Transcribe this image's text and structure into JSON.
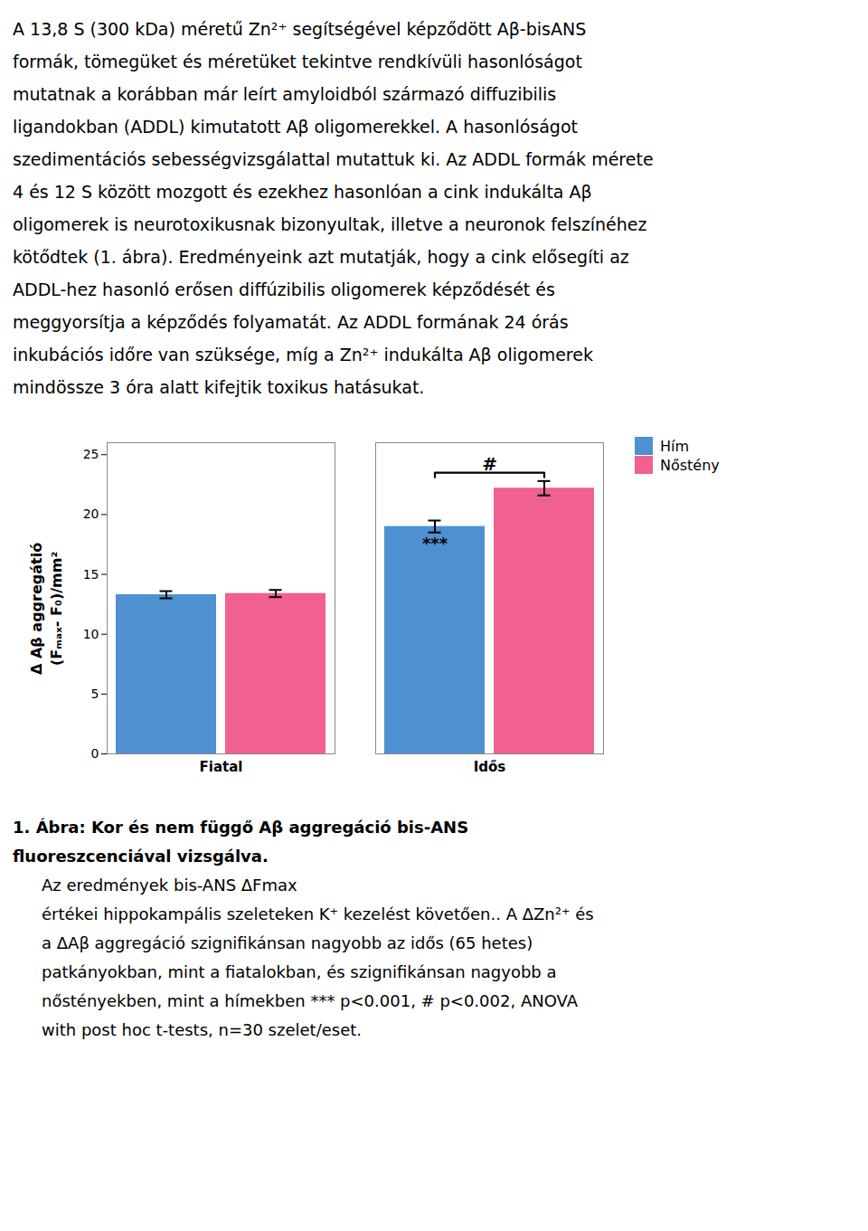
{
  "chart_data": {
    "type": "bar",
    "subtitle": [
      "A 13,8 S (300 kDa) méretű Zn²⁺ segítségével képződött Aβ-bisANS",
      "formák, tömegüket és méretüket tekintve rendkívüli hasonlóságot",
      "mutatnak a korábban már leírt amyloidból származó diffuzibilis",
      "ligandokban (ADDL) kimutatott Aβ oligomerekkel. A hasonlóságot",
      "szedimentációs sebességvizsgálattal mutattuk ki. Az ADDL formák mérete",
      "4 és 12 S között mozgott és ezekhez hasonlóan a cink indukálta Aβ",
      "oligomerek is neurotoxikusnak bizonyultak, illetve a neuronok felszínéhez",
      "kötődtek (1. ábra). Eredményeink azt mutatják, hogy a cink elősegíti az",
      "ADDL-hez hasonló erősen diffúzibilis oligomerek képződését és",
      "meggyorsítja a képződés folyamatát. Az ADDL formának 24 órás",
      "inkubációs időre van szüksége, míg a Zn²⁺ indukálta Aβ oligomerek",
      "mindössze 3 óra alatt kifejtik toxikus hatásukat."
    ],
    "categories": [
      "Fiatal",
      "Idős"
    ],
    "series": [
      {
        "name": "Hím",
        "color": "#4f90d0",
        "values": [
          13.3,
          19.0
        ],
        "errors": [
          0.3,
          0.5
        ]
      },
      {
        "name": "Nőstény",
        "color": "#f06090",
        "values": [
          13.4,
          22.2
        ],
        "errors": [
          0.3,
          0.6
        ]
      }
    ],
    "ylabel": "Δ Aβ aggregátió\n(Fₘₐₓ- F₀)/mm²",
    "ylim": [
      0,
      26
    ],
    "yticks": [
      0,
      5,
      10,
      15,
      20,
      25
    ],
    "legend": "right",
    "annotations": [
      {
        "text": "***",
        "category": "Idős",
        "series": "Hím"
      },
      {
        "text": "#",
        "category": "Idős",
        "series": [
          "Hím",
          "Nőstény"
        ]
      }
    ],
    "caption_title": [
      "1. Ábra:  Kor és nem függő Aβ aggregáció bis-ANS",
      "fluoreszcenciával vizsgálva."
    ],
    "caption": [
      "Az eredmények bis-ANS ΔFmax",
      "értékei hippokampális szeleteken K⁺ kezelést követően.. A ΔZn²⁺ és",
      "a ΔAβ aggregáció szignifikánsan nagyobb az idős (65 hetes)",
      "patkányokban, mint a fiatalokban, és szignifikánsan nagyobb a",
      "nőstényekben, mint a hímekben *** p<0.001, # p<0.002, ANOVA",
      "with post hoc t-tests, n=30 szelet/eset."
    ]
  }
}
